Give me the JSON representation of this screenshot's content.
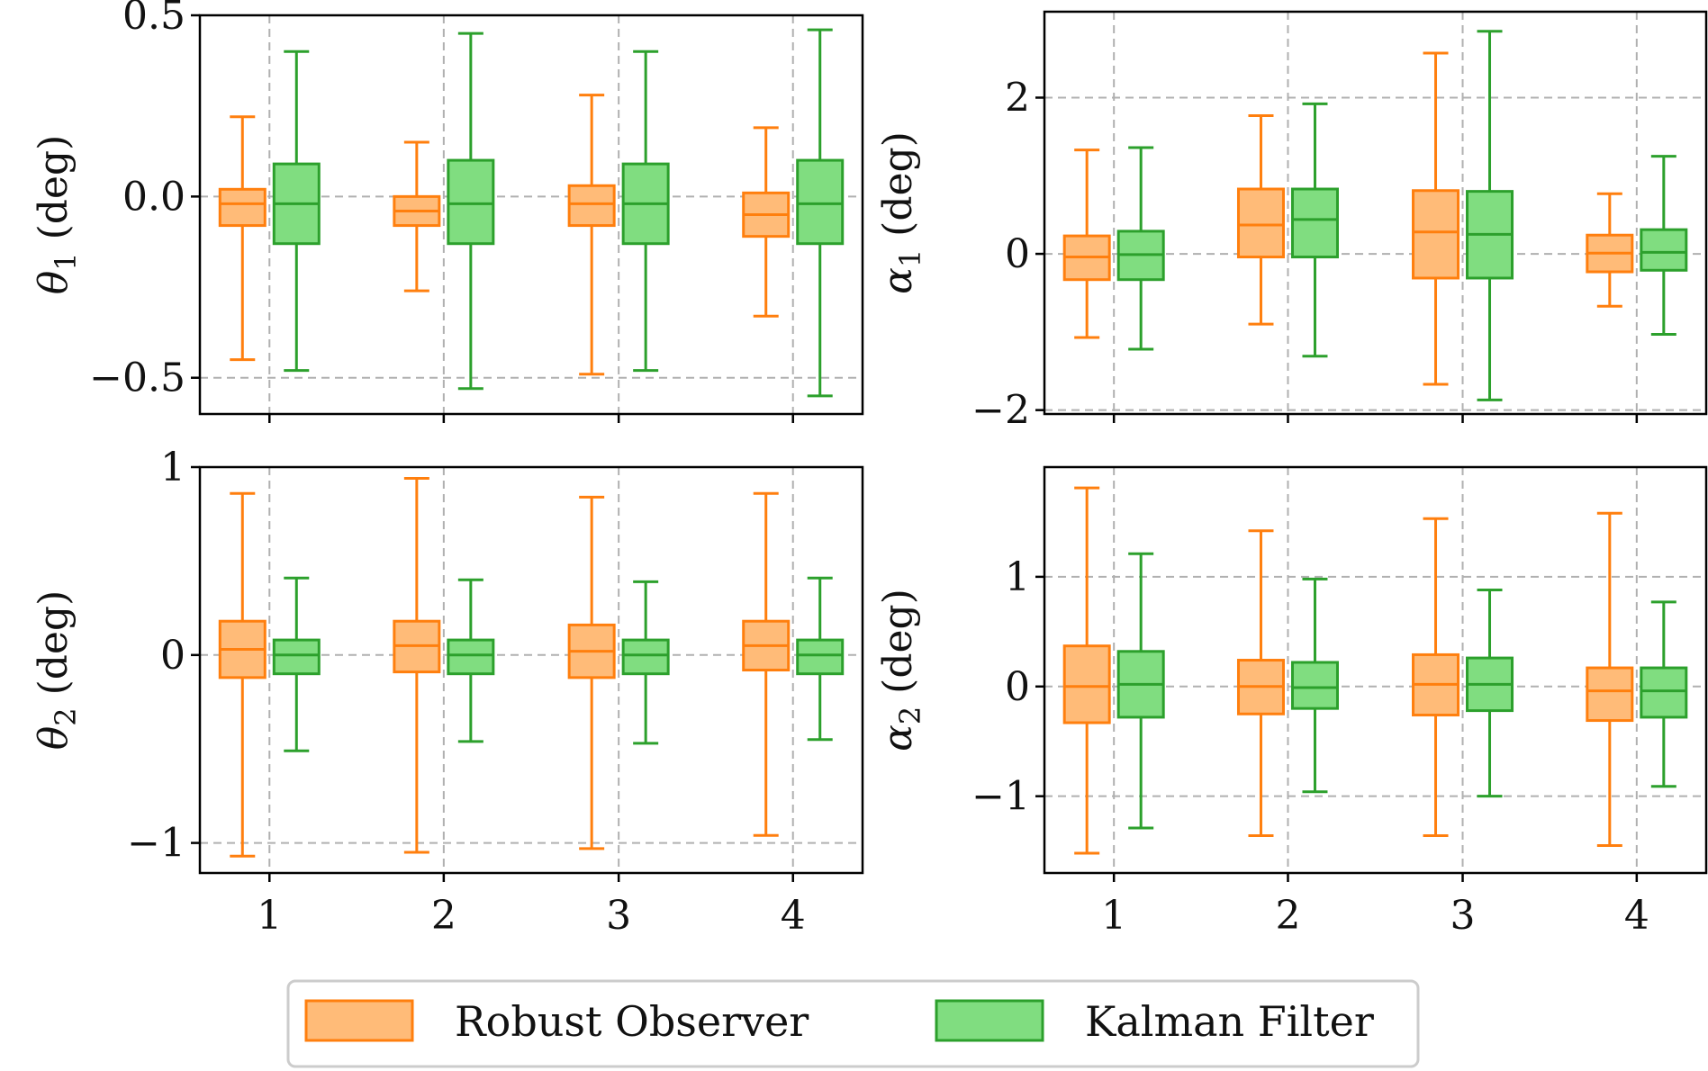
{
  "colors": {
    "robust_edge": "#ff7f0e",
    "robust_fill": "#ffbb78",
    "kalman_edge": "#2ca02c",
    "kalman_fill": "#80dd80",
    "grid": "#b0b0b0",
    "axis": "#000000"
  },
  "legend": {
    "placement": "bottom-center",
    "items": [
      {
        "key": "robust",
        "label": "Robust Observer"
      },
      {
        "key": "kalman",
        "label": "Kalman Filter"
      }
    ]
  },
  "chart_data": [
    {
      "id": "theta1",
      "type": "box",
      "ylabel": {
        "symbol": "θ",
        "subscript": "1",
        "unit": " (deg)"
      },
      "categories": [
        "1",
        "2",
        "3",
        "4"
      ],
      "ylim": [
        -0.6,
        0.5
      ],
      "yticks": [
        -0.5,
        0.0,
        0.5
      ],
      "ytick_labels": [
        "−0.5",
        "0.0",
        "0.5"
      ],
      "show_xtick_labels": false,
      "grid": true,
      "series": [
        {
          "name": "Robust Observer",
          "key": "robust",
          "boxes": [
            {
              "min": -0.45,
              "q1": -0.08,
              "median": -0.02,
              "q3": 0.02,
              "max": 0.22
            },
            {
              "min": -0.26,
              "q1": -0.08,
              "median": -0.04,
              "q3": 0.0,
              "max": 0.15
            },
            {
              "min": -0.49,
              "q1": -0.08,
              "median": -0.02,
              "q3": 0.03,
              "max": 0.28
            },
            {
              "min": -0.33,
              "q1": -0.11,
              "median": -0.05,
              "q3": 0.01,
              "max": 0.19
            }
          ]
        },
        {
          "name": "Kalman Filter",
          "key": "kalman",
          "boxes": [
            {
              "min": -0.48,
              "q1": -0.13,
              "median": -0.02,
              "q3": 0.09,
              "max": 0.4
            },
            {
              "min": -0.53,
              "q1": -0.13,
              "median": -0.02,
              "q3": 0.1,
              "max": 0.45
            },
            {
              "min": -0.48,
              "q1": -0.13,
              "median": -0.02,
              "q3": 0.09,
              "max": 0.4
            },
            {
              "min": -0.55,
              "q1": -0.13,
              "median": -0.02,
              "q3": 0.1,
              "max": 0.46
            }
          ]
        }
      ]
    },
    {
      "id": "alpha1",
      "type": "box",
      "ylabel": {
        "symbol": "α",
        "subscript": "1",
        "unit": " (deg)"
      },
      "categories": [
        "1",
        "2",
        "3",
        "4"
      ],
      "ylim": [
        -2.05,
        3.1
      ],
      "yticks": [
        -2,
        0,
        2
      ],
      "ytick_labels": [
        "−2",
        "0",
        "2"
      ],
      "show_xtick_labels": false,
      "grid": true,
      "series": [
        {
          "name": "Robust Observer",
          "key": "robust",
          "boxes": [
            {
              "min": -1.07,
              "q1": -0.33,
              "median": -0.04,
              "q3": 0.23,
              "max": 1.33
            },
            {
              "min": -0.9,
              "q1": -0.04,
              "median": 0.37,
              "q3": 0.83,
              "max": 1.77
            },
            {
              "min": -1.67,
              "q1": -0.31,
              "median": 0.28,
              "q3": 0.81,
              "max": 2.57
            },
            {
              "min": -0.67,
              "q1": -0.23,
              "median": 0.01,
              "q3": 0.24,
              "max": 0.77
            }
          ]
        },
        {
          "name": "Kalman Filter",
          "key": "kalman",
          "boxes": [
            {
              "min": -1.22,
              "q1": -0.33,
              "median": -0.01,
              "q3": 0.29,
              "max": 1.36
            },
            {
              "min": -1.31,
              "q1": -0.04,
              "median": 0.44,
              "q3": 0.83,
              "max": 1.92
            },
            {
              "min": -1.87,
              "q1": -0.31,
              "median": 0.25,
              "q3": 0.8,
              "max": 2.85
            },
            {
              "min": -1.03,
              "q1": -0.21,
              "median": 0.02,
              "q3": 0.31,
              "max": 1.25
            }
          ]
        }
      ]
    },
    {
      "id": "theta2",
      "type": "box",
      "ylabel": {
        "symbol": "θ",
        "subscript": "2",
        "unit": " (deg)"
      },
      "categories": [
        "1",
        "2",
        "3",
        "4"
      ],
      "ylim": [
        -1.16,
        1.0
      ],
      "yticks": [
        -1,
        0,
        1
      ],
      "ytick_labels": [
        "−1",
        "0",
        "1"
      ],
      "show_xtick_labels": true,
      "grid": true,
      "series": [
        {
          "name": "Robust Observer",
          "key": "robust",
          "boxes": [
            {
              "min": -1.07,
              "q1": -0.12,
              "median": 0.03,
              "q3": 0.18,
              "max": 0.86
            },
            {
              "min": -1.05,
              "q1": -0.09,
              "median": 0.05,
              "q3": 0.18,
              "max": 0.94
            },
            {
              "min": -1.03,
              "q1": -0.12,
              "median": 0.02,
              "q3": 0.16,
              "max": 0.84
            },
            {
              "min": -0.96,
              "q1": -0.08,
              "median": 0.05,
              "q3": 0.18,
              "max": 0.86
            }
          ]
        },
        {
          "name": "Kalman Filter",
          "key": "kalman",
          "boxes": [
            {
              "min": -0.51,
              "q1": -0.1,
              "median": 0.0,
              "q3": 0.08,
              "max": 0.41
            },
            {
              "min": -0.46,
              "q1": -0.1,
              "median": 0.0,
              "q3": 0.08,
              "max": 0.4
            },
            {
              "min": -0.47,
              "q1": -0.1,
              "median": 0.0,
              "q3": 0.08,
              "max": 0.39
            },
            {
              "min": -0.45,
              "q1": -0.1,
              "median": 0.0,
              "q3": 0.08,
              "max": 0.41
            }
          ]
        }
      ]
    },
    {
      "id": "alpha2",
      "type": "box",
      "ylabel": {
        "symbol": "α",
        "subscript": "2",
        "unit": " (deg)"
      },
      "categories": [
        "1",
        "2",
        "3",
        "4"
      ],
      "ylim": [
        -1.7,
        2.0
      ],
      "yticks": [
        -1,
        0,
        1
      ],
      "ytick_labels": [
        "−1",
        "0",
        "1"
      ],
      "show_xtick_labels": true,
      "grid": true,
      "series": [
        {
          "name": "Robust Observer",
          "key": "robust",
          "boxes": [
            {
              "min": -1.52,
              "q1": -0.33,
              "median": 0.0,
              "q3": 0.37,
              "max": 1.81
            },
            {
              "min": -1.36,
              "q1": -0.25,
              "median": 0.0,
              "q3": 0.24,
              "max": 1.42
            },
            {
              "min": -1.36,
              "q1": -0.26,
              "median": 0.02,
              "q3": 0.29,
              "max": 1.53
            },
            {
              "min": -1.45,
              "q1": -0.31,
              "median": -0.04,
              "q3": 0.17,
              "max": 1.58
            }
          ]
        },
        {
          "name": "Kalman Filter",
          "key": "kalman",
          "boxes": [
            {
              "min": -1.29,
              "q1": -0.28,
              "median": 0.02,
              "q3": 0.32,
              "max": 1.21
            },
            {
              "min": -0.96,
              "q1": -0.2,
              "median": -0.01,
              "q3": 0.22,
              "max": 0.98
            },
            {
              "min": -1.0,
              "q1": -0.22,
              "median": 0.02,
              "q3": 0.26,
              "max": 0.88
            },
            {
              "min": -0.91,
              "q1": -0.28,
              "median": -0.04,
              "q3": 0.17,
              "max": 0.77
            }
          ]
        }
      ]
    }
  ]
}
